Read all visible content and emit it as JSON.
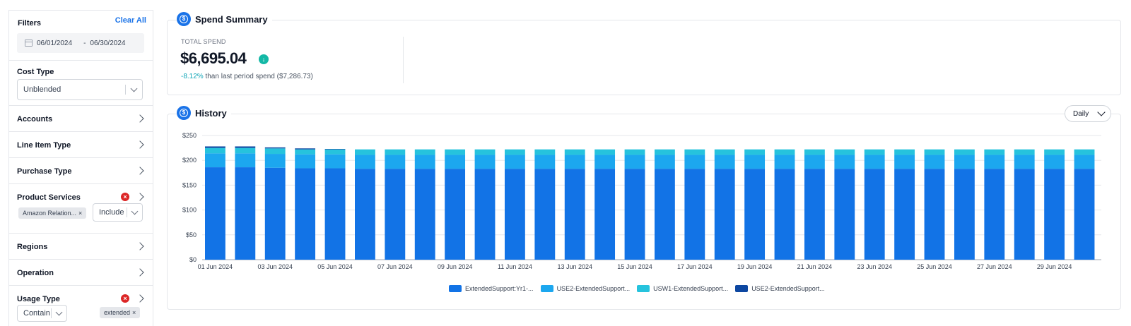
{
  "sidebar": {
    "title": "Filters",
    "clear_all": "Clear All",
    "date_from": "06/01/2024",
    "date_to": "06/30/2024",
    "date_separator": "-",
    "cost_type": {
      "label": "Cost Type",
      "value": "Unblended"
    },
    "accounts": {
      "label": "Accounts"
    },
    "line_item_type": {
      "label": "Line Item Type"
    },
    "purchase_type": {
      "label": "Purchase Type"
    },
    "product_services": {
      "label": "Product Services",
      "chip": "Amazon Relation...",
      "mode": "Include"
    },
    "regions": {
      "label": "Regions"
    },
    "operation": {
      "label": "Operation"
    },
    "usage_type": {
      "label": "Usage Type",
      "mode": "Contain",
      "chip": "extended"
    }
  },
  "spend_summary": {
    "title": "Spend Summary",
    "total_label": "TOTAL SPEND",
    "total_value": "$6,695.04",
    "delta_pct": "-8.12%",
    "delta_text": " than last period spend ($7,286.73)"
  },
  "history": {
    "title": "History",
    "granularity": "Daily"
  },
  "colors": {
    "accent": "#1a73e8",
    "series": [
      "#1273e6",
      "#1ca7ef",
      "#26c3dd",
      "#0d47a1"
    ]
  },
  "chart_data": {
    "type": "bar",
    "stacked": true,
    "categories": [
      "01 Jun 2024",
      "02 Jun 2024",
      "03 Jun 2024",
      "04 Jun 2024",
      "05 Jun 2024",
      "06 Jun 2024",
      "07 Jun 2024",
      "08 Jun 2024",
      "09 Jun 2024",
      "10 Jun 2024",
      "11 Jun 2024",
      "12 Jun 2024",
      "13 Jun 2024",
      "14 Jun 2024",
      "15 Jun 2024",
      "16 Jun 2024",
      "17 Jun 2024",
      "18 Jun 2024",
      "19 Jun 2024",
      "20 Jun 2024",
      "21 Jun 2024",
      "22 Jun 2024",
      "23 Jun 2024",
      "24 Jun 2024",
      "25 Jun 2024",
      "26 Jun 2024",
      "27 Jun 2024",
      "28 Jun 2024",
      "29 Jun 2024",
      "30 Jun 2024"
    ],
    "x_tick_labels": [
      "01 Jun 2024",
      "03 Jun 2024",
      "05 Jun 2024",
      "07 Jun 2024",
      "09 Jun 2024",
      "11 Jun 2024",
      "13 Jun 2024",
      "15 Jun 2024",
      "17 Jun 2024",
      "19 Jun 2024",
      "21 Jun 2024",
      "23 Jun 2024",
      "25 Jun 2024",
      "27 Jun 2024",
      "29 Jun 2024"
    ],
    "y_tick_labels": [
      "$0",
      "$50",
      "$100",
      "$150",
      "$200",
      "$250"
    ],
    "ylim": [
      0,
      250
    ],
    "grid": true,
    "legend_position": "bottom",
    "series": [
      {
        "name": "ExtendedSupport:Yr1-...",
        "color": "#1273e6",
        "values": [
          186,
          186,
          185,
          184,
          184,
          183,
          183,
          183,
          183,
          183,
          183,
          183,
          183,
          183,
          183,
          183,
          183,
          183,
          183,
          183,
          183,
          183,
          183,
          183,
          183,
          183,
          183,
          183,
          183,
          183
        ]
      },
      {
        "name": "USE2-ExtendedSupport...",
        "color": "#1ca7ef",
        "values": [
          28,
          28,
          28,
          28,
          28,
          28,
          28,
          28,
          28,
          28,
          28,
          28,
          28,
          28,
          28,
          28,
          28,
          28,
          28,
          28,
          28,
          28,
          28,
          28,
          28,
          28,
          28,
          28,
          28,
          28
        ]
      },
      {
        "name": "USW1-ExtendedSupport...",
        "color": "#26c3dd",
        "values": [
          11,
          11,
          11,
          10,
          10,
          11,
          11,
          11,
          11,
          11,
          11,
          11,
          11,
          11,
          11,
          11,
          11,
          11,
          11,
          11,
          11,
          11,
          11,
          11,
          11,
          11,
          11,
          11,
          11,
          11
        ]
      },
      {
        "name": "USE2-ExtendedSupport...",
        "color": "#0d47a1",
        "values": [
          3,
          3,
          2,
          2,
          1,
          0,
          0,
          0,
          0,
          0,
          0,
          0,
          0,
          0,
          0,
          0,
          0,
          0,
          0,
          0,
          0,
          0,
          0,
          0,
          0,
          0,
          0,
          0,
          0,
          0
        ]
      }
    ]
  }
}
